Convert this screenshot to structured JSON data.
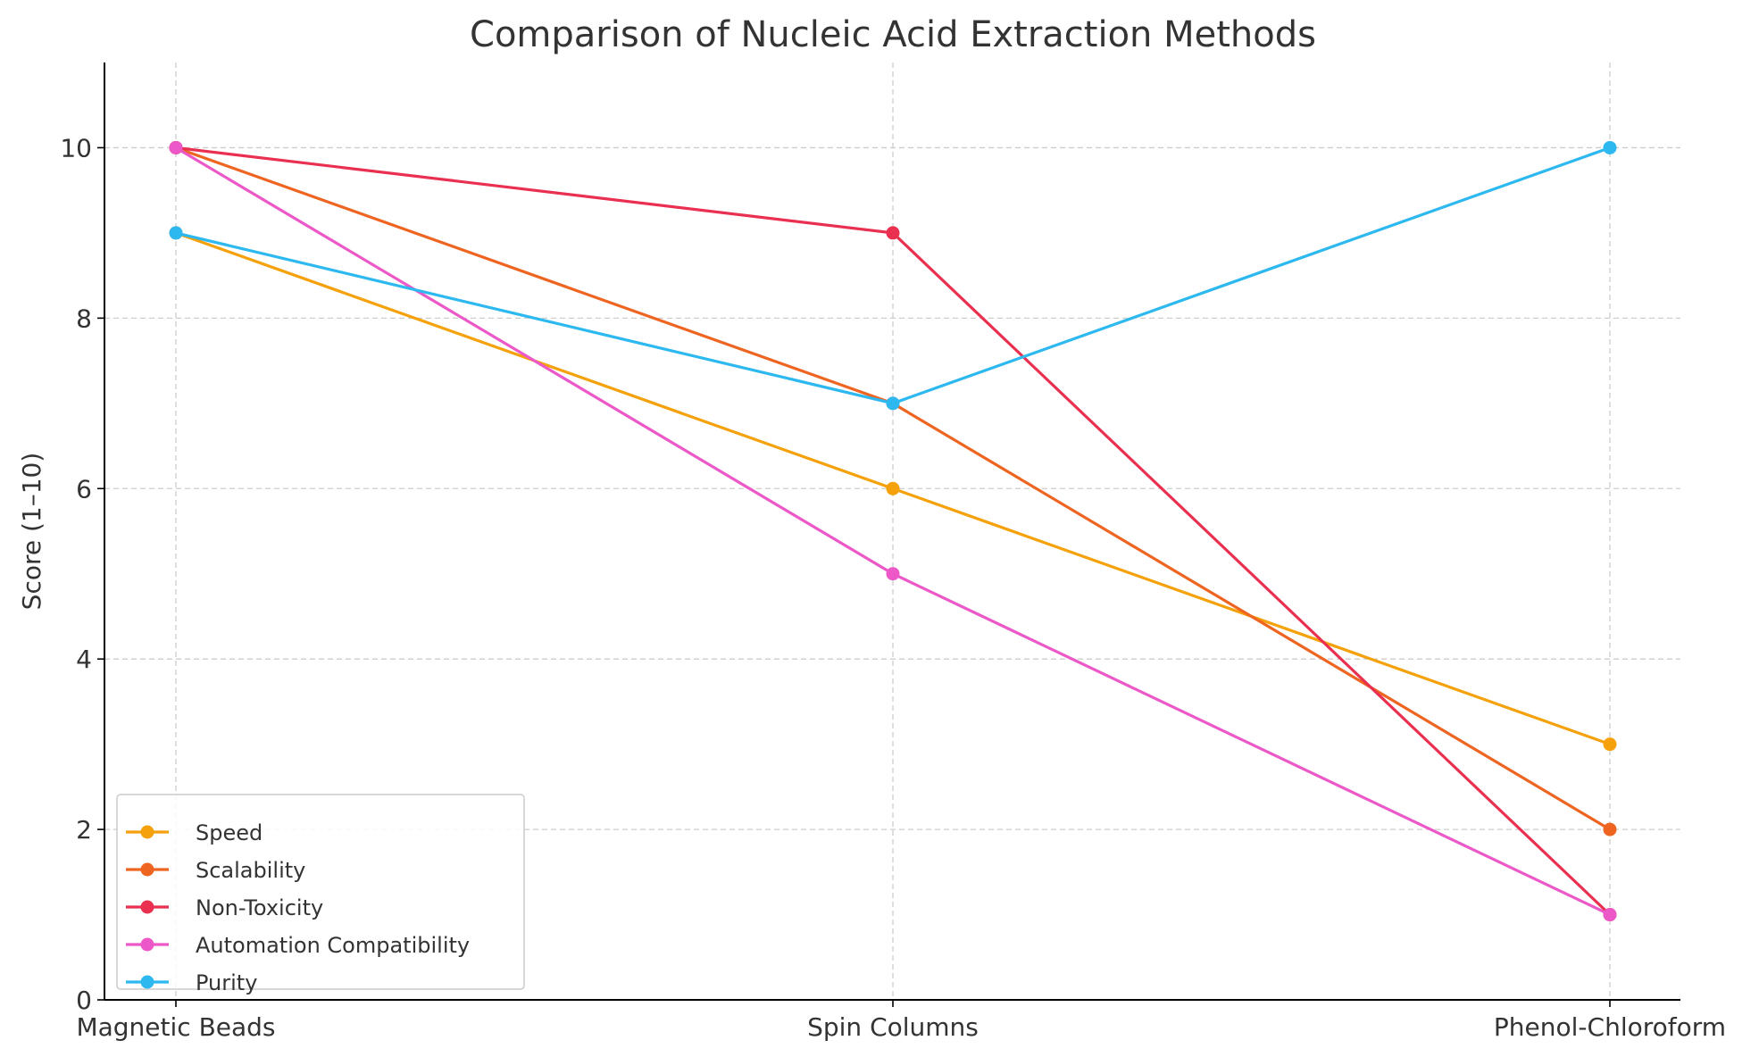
{
  "chart_data": {
    "type": "line",
    "title": "Comparison of Nucleic Acid Extraction Methods",
    "xlabel": "",
    "ylabel": "Score (1–10)",
    "categories": [
      "Magnetic Beads",
      "Spin Columns",
      "Phenol-Chloroform"
    ],
    "yticks": [
      0,
      2,
      4,
      6,
      8,
      10
    ],
    "ylim": [
      0,
      11
    ],
    "grid": true,
    "legend_position": "lower-left",
    "series": [
      {
        "name": "Speed",
        "color": "#f5a10b",
        "values": [
          9,
          6,
          3
        ]
      },
      {
        "name": "Scalability",
        "color": "#ee6522",
        "values": [
          10,
          7,
          2
        ]
      },
      {
        "name": "Non-Toxicity",
        "color": "#ea3050",
        "values": [
          10,
          9,
          1
        ]
      },
      {
        "name": "Automation Compatibility",
        "color": "#ec58c7",
        "values": [
          10,
          5,
          1
        ]
      },
      {
        "name": "Purity",
        "color": "#2db8f0",
        "values": [
          9,
          7,
          10
        ]
      }
    ]
  }
}
